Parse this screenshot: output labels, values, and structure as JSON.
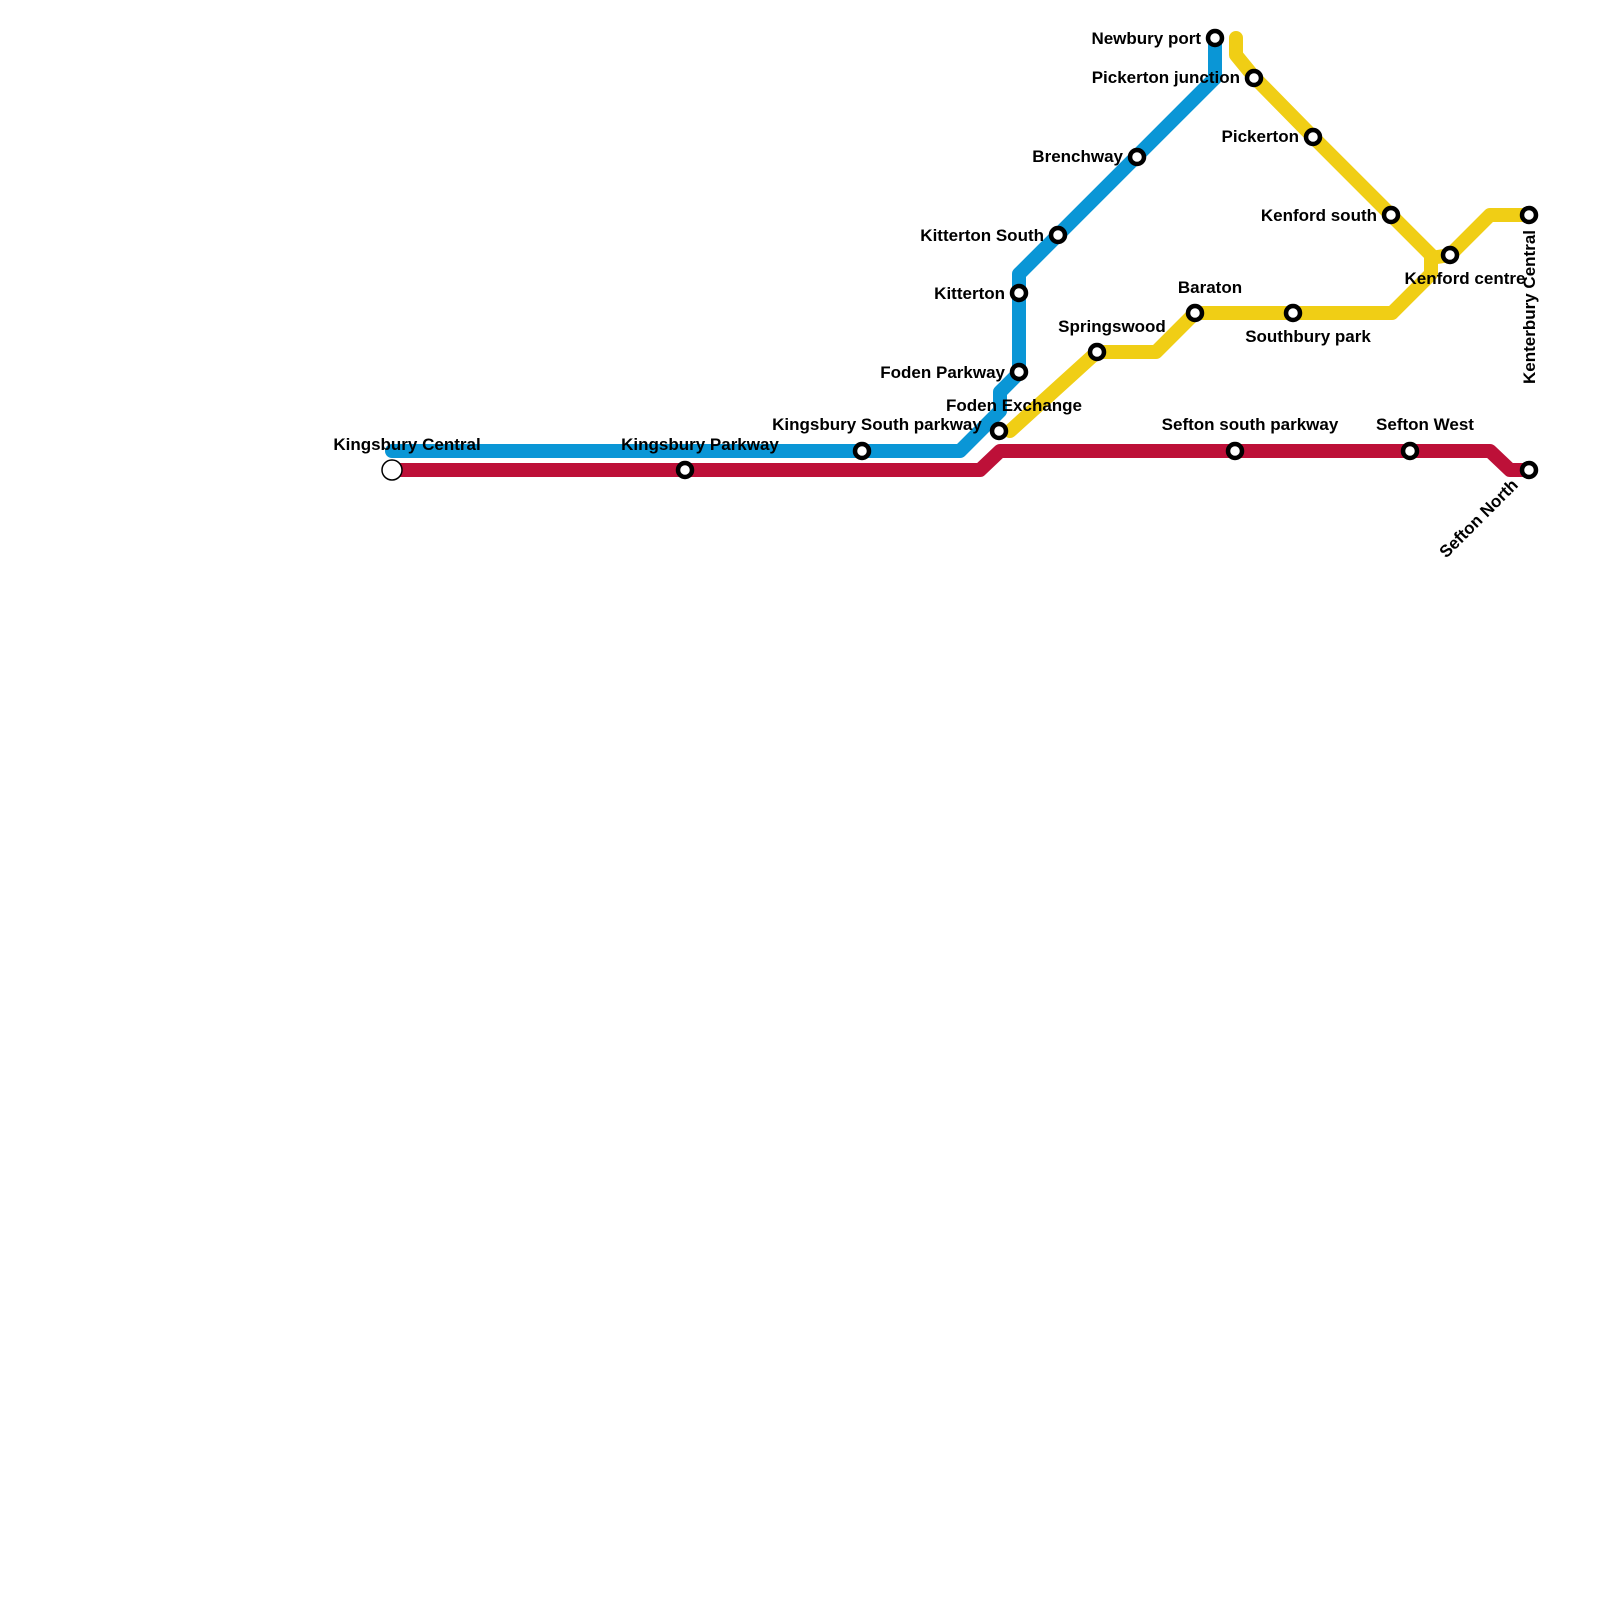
{
  "lines": {
    "blue": {
      "color": "#0a96d6"
    },
    "red": {
      "color": "#bd1038"
    },
    "yellow": {
      "color": "#f0ce15"
    }
  },
  "stations": {
    "kingsbury_central": "Kingsbury Central",
    "kingsbury_parkway": "Kingsbury Parkway",
    "kingsbury_south_parkway": "Kingsbury South parkway",
    "foden_exchange": "Foden Exchange",
    "foden_parkway": "Foden Parkway",
    "kitterton": "Kitterton",
    "kitterton_south": "Kitterton South",
    "brenchway": "Brenchway",
    "newbury_port": "Newbury port",
    "pickerton_junction": "Pickerton junction",
    "pickerton": "Pickerton",
    "kenford_south": "Kenford south",
    "kenford_centre": "Kenford centre",
    "kenterbury_central": "Kenterbury Central",
    "springswood": "Springswood",
    "baraton": "Baraton",
    "southbury_park": "Southbury park",
    "sefton_south_parkway": "Sefton south parkway",
    "sefton_west": "Sefton West",
    "sefton_north": "Sefton North"
  }
}
